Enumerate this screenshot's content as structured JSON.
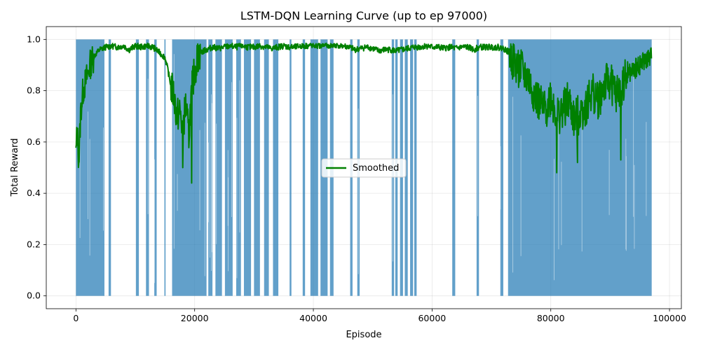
{
  "chart_data": {
    "type": "line",
    "title": "LSTM-DQN Learning Curve (up to ep 97000)",
    "xlabel": "Episode",
    "ylabel": "Total Reward",
    "xlim": [
      -5000,
      102000
    ],
    "ylim": [
      -0.05,
      1.05
    ],
    "xticks": [
      0,
      20000,
      40000,
      60000,
      80000,
      100000
    ],
    "xtick_labels": [
      "0",
      "20000",
      "40000",
      "60000",
      "80000",
      "100000"
    ],
    "yticks": [
      0.0,
      0.2,
      0.4,
      0.6,
      0.8,
      1.0
    ],
    "ytick_labels": [
      "0.0",
      "0.2",
      "0.4",
      "0.6",
      "0.8",
      "1.0"
    ],
    "grid": true,
    "legend": {
      "position": "center",
      "entries": [
        "Smoothed"
      ]
    },
    "series": [
      {
        "name": "",
        "color": "#1f77b4",
        "style": "raw-reward band: episodes 0 to 97000, values spanning 0.0 to 1.0 with intermittent gaps",
        "x_range": [
          0,
          97000
        ],
        "y_range": [
          0.0,
          1.0
        ],
        "gap_intervals": [
          [
            4800,
            5500
          ],
          [
            5900,
            10100
          ],
          [
            10600,
            11800
          ],
          [
            12300,
            13200
          ],
          [
            13600,
            14900
          ],
          [
            15100,
            16200
          ],
          [
            22000,
            22300
          ],
          [
            23000,
            23500
          ],
          [
            24600,
            25100
          ],
          [
            26400,
            27000
          ],
          [
            27800,
            28300
          ],
          [
            29500,
            30000
          ],
          [
            31000,
            31700
          ],
          [
            32500,
            33200
          ],
          [
            34100,
            36000
          ],
          [
            36300,
            38200
          ],
          [
            38600,
            39500
          ],
          [
            40800,
            41200
          ],
          [
            42400,
            42800
          ],
          [
            43400,
            46200
          ],
          [
            46600,
            47400
          ],
          [
            47800,
            53200
          ],
          [
            53600,
            53800
          ],
          [
            54200,
            54600
          ],
          [
            55100,
            55400
          ],
          [
            55900,
            56300
          ],
          [
            56800,
            57000
          ],
          [
            57400,
            63400
          ],
          [
            63900,
            67500
          ],
          [
            67900,
            71500
          ],
          [
            72000,
            72800
          ]
        ]
      },
      {
        "name": "Smoothed",
        "color": "#008000",
        "x": [
          0,
          200,
          500,
          800,
          1200,
          1800,
          2500,
          3200,
          4000,
          5000,
          6000,
          7000,
          8000,
          9000,
          10000,
          11000,
          12000,
          13000,
          14000,
          15000,
          15500,
          16000,
          16500,
          17000,
          17500,
          18000,
          18500,
          19000,
          19500,
          20000,
          20500,
          21000,
          22000,
          23000,
          24000,
          25000,
          26000,
          27000,
          28000,
          29000,
          30000,
          31000,
          32000,
          33000,
          34000,
          35000,
          36000,
          37000,
          38000,
          39000,
          40000,
          41000,
          42000,
          43000,
          44000,
          45000,
          46000,
          47000,
          48000,
          49000,
          50000,
          51000,
          52000,
          53000,
          54000,
          55000,
          56000,
          57000,
          58000,
          59000,
          60000,
          61000,
          62000,
          63000,
          64000,
          65000,
          66000,
          67000,
          68000,
          69000,
          70000,
          71000,
          72000,
          73000,
          74000,
          75000,
          76000,
          77000,
          78000,
          79000,
          80000,
          81000,
          82000,
          83000,
          84000,
          85000,
          86000,
          87000,
          88000,
          89000,
          90000,
          91000,
          92000,
          93000,
          94000,
          95000,
          96000,
          97000
        ],
        "values": [
          0.55,
          0.65,
          0.52,
          0.72,
          0.8,
          0.85,
          0.91,
          0.94,
          0.96,
          0.97,
          0.975,
          0.97,
          0.975,
          0.96,
          0.975,
          0.97,
          0.975,
          0.97,
          0.95,
          0.93,
          0.88,
          0.82,
          0.78,
          0.7,
          0.72,
          0.65,
          0.75,
          0.62,
          0.8,
          0.88,
          0.93,
          0.95,
          0.96,
          0.97,
          0.965,
          0.97,
          0.975,
          0.97,
          0.975,
          0.97,
          0.97,
          0.975,
          0.97,
          0.965,
          0.97,
          0.975,
          0.97,
          0.97,
          0.975,
          0.975,
          0.978,
          0.975,
          0.978,
          0.975,
          0.978,
          0.975,
          0.97,
          0.96,
          0.965,
          0.97,
          0.965,
          0.955,
          0.96,
          0.96,
          0.955,
          0.96,
          0.965,
          0.97,
          0.97,
          0.975,
          0.97,
          0.97,
          0.965,
          0.97,
          0.965,
          0.97,
          0.97,
          0.96,
          0.97,
          0.97,
          0.97,
          0.97,
          0.965,
          0.95,
          0.9,
          0.88,
          0.85,
          0.8,
          0.75,
          0.72,
          0.78,
          0.7,
          0.72,
          0.76,
          0.68,
          0.72,
          0.74,
          0.8,
          0.76,
          0.82,
          0.84,
          0.78,
          0.82,
          0.86,
          0.88,
          0.9,
          0.92,
          0.93
        ],
        "min_dips": [
          [
            18000,
            0.5
          ],
          [
            19500,
            0.44
          ],
          [
            81000,
            0.48
          ],
          [
            84500,
            0.52
          ],
          [
            91800,
            0.53
          ]
        ]
      }
    ]
  }
}
